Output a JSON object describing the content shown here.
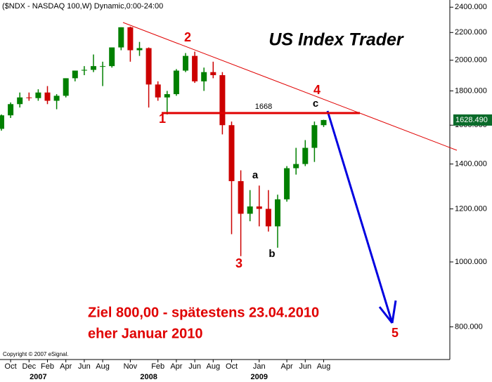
{
  "chart_data": {
    "type": "candlestick",
    "title": "($NDX - NASDAQ 100,W) Dynamic,0:00-24:00",
    "categories": [
      null,
      "Oct",
      null,
      "Dec",
      null,
      "Feb",
      null,
      "Apr",
      null,
      "Jun",
      null,
      "Aug",
      null,
      null,
      "Nov",
      null,
      null,
      "Feb",
      null,
      "Apr",
      null,
      "Jun",
      null,
      "Aug",
      null,
      "Oct",
      null,
      null,
      "Jan",
      null,
      null,
      "Apr",
      null,
      "Jun",
      null,
      "Aug"
    ],
    "years": [
      null,
      null,
      null,
      null,
      "2007",
      null,
      null,
      null,
      null,
      null,
      null,
      null,
      null,
      null,
      null,
      null,
      "2008",
      null,
      null,
      null,
      null,
      null,
      null,
      null,
      null,
      null,
      null,
      null,
      "2009",
      null,
      null,
      null,
      null,
      null,
      null,
      null
    ],
    "open": [
      1580,
      1655,
      1720,
      1760,
      1756,
      1790,
      1740,
      1770,
      1880,
      1930,
      1935,
      1960,
      1960,
      2090,
      2240,
      2070,
      2085,
      1840,
      1760,
      1780,
      1930,
      2030,
      1860,
      1920,
      1900,
      1600,
      1320,
      1180,
      1210,
      1200,
      1130,
      1240,
      1380,
      1400,
      1480,
      1600
    ],
    "high": [
      1660,
      1730,
      1790,
      1790,
      1810,
      1830,
      1780,
      1880,
      1930,
      1960,
      2040,
      1990,
      2090,
      2240,
      2245,
      2130,
      2090,
      1860,
      1800,
      1940,
      2050,
      2060,
      1950,
      1990,
      1920,
      1620,
      1370,
      1280,
      1300,
      1280,
      1260,
      1390,
      1480,
      1520,
      1620,
      1630
    ],
    "low": [
      1570,
      1640,
      1700,
      1740,
      1740,
      1720,
      1690,
      1760,
      1860,
      1900,
      1920,
      1830,
      1950,
      2070,
      1990,
      2030,
      1700,
      1740,
      1660,
      1770,
      1920,
      1850,
      1800,
      1880,
      1550,
      1100,
      1020,
      1150,
      1130,
      1110,
      1050,
      1230,
      1350,
      1390,
      1410,
      1590
    ],
    "close": [
      1655,
      1720,
      1760,
      1756,
      1790,
      1740,
      1770,
      1880,
      1930,
      1935,
      1960,
      1960,
      2090,
      2240,
      2070,
      2085,
      1840,
      1760,
      1780,
      1930,
      2030,
      1860,
      1920,
      1900,
      1600,
      1320,
      1180,
      1210,
      1200,
      1130,
      1240,
      1380,
      1400,
      1480,
      1600,
      1628.49
    ],
    "up_color": "#008000",
    "down_color": "#cc0000",
    "log_scale": true,
    "ylim": [
      715,
      2460
    ],
    "yticks": [
      {
        "value": 2400,
        "label": "2400.000"
      },
      {
        "value": 2200,
        "label": "2200.000"
      },
      {
        "value": 2000,
        "label": "2000.000"
      },
      {
        "value": 1800,
        "label": "1800.000"
      },
      {
        "value": 1600,
        "label": "1600.000"
      },
      {
        "value": 1400,
        "label": "1400.000"
      },
      {
        "value": 1200,
        "label": "1200.000"
      },
      {
        "value": 1000,
        "label": "1000.000"
      },
      {
        "value": 800,
        "label": "800.000"
      }
    ],
    "last_value_label": "1628.490",
    "level": 1668,
    "level_label": "1668",
    "level_color": "#e00000",
    "wave_labels": [
      "1",
      "2",
      "3",
      "4",
      "5"
    ],
    "sub_labels": [
      "a",
      "b",
      "c"
    ],
    "brand": "US Index Trader",
    "target_lines": [
      "Ziel 800,00 - spätestens 23.04.2010",
      "eher Januar 2010"
    ],
    "copyright": "Copyright © 2007 eSignal."
  }
}
